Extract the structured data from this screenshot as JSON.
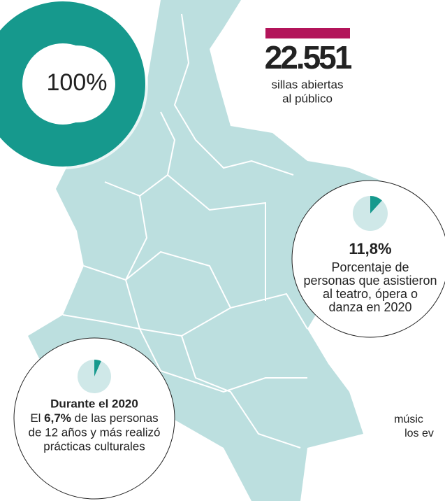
{
  "ring": {
    "value": 100,
    "label": "100%"
  },
  "seats": {
    "number": "22.551",
    "lines": [
      "sillas abiertas",
      "al público"
    ]
  },
  "theatre": {
    "value": 11.8,
    "label": "11,8%",
    "lines": [
      "Porcentaje de",
      "personas que asistieron",
      "al teatro, ópera o",
      "danza en 2020"
    ]
  },
  "culture": {
    "value": 6.7,
    "title": "Durante el 2020",
    "lead": "El",
    "label": "6,7%",
    "rest": "de las personas",
    "lines": [
      "de 12 años y más realizó",
      "prácticas culturales"
    ]
  },
  "cut_text": [
    "músic",
    "los ev"
  ]
}
